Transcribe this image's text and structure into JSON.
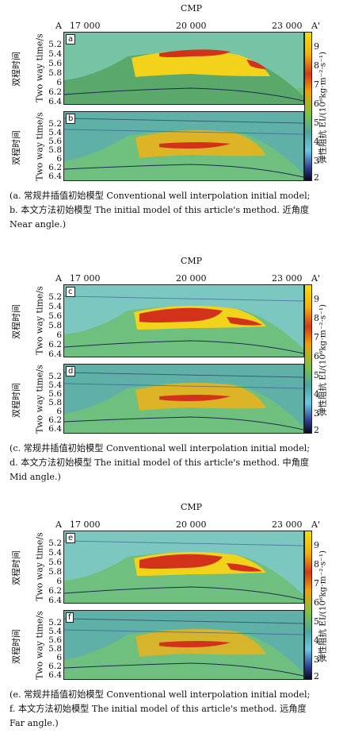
{
  "figure": {
    "groups": [
      {
        "cmp_label": "CMP",
        "a_label": "A",
        "a_prime_label": "A'",
        "x_ticks": [
          "17 000",
          "20 000",
          "23 000"
        ],
        "y_axis_cn": "双程时间",
        "y_axis_en": "Two way time/s",
        "y_ticks": [
          "5.2",
          "5.4",
          "5.6",
          "5.8",
          "6",
          "6.2",
          "6.4"
        ],
        "colorbar_label": "弹性阻抗 EI/(10⁶kg·m⁻²·s⁻¹)",
        "colorbar_ticks": [
          "9",
          "8",
          "7",
          "6",
          "5",
          "4",
          "3",
          "2"
        ],
        "panels": [
          {
            "label": "a"
          },
          {
            "label": "b"
          }
        ],
        "caption_lines": [
          "(a. 常规井插值初始模型 Conventional well interpolation initial model;",
          "b. 本文方法初始模型 The initial model of this article's method. 近角度",
          "Near angle.)"
        ]
      },
      {
        "cmp_label": "CMP",
        "a_label": "A",
        "a_prime_label": "A'",
        "x_ticks": [
          "17 000",
          "20 000",
          "23 000"
        ],
        "y_axis_cn": "双程时间",
        "y_axis_en": "Two way time/s",
        "y_ticks": [
          "5.2",
          "5.4",
          "5.6",
          "5.8",
          "6",
          "6.2",
          "6.4"
        ],
        "colorbar_label": "弹性阻抗 EI/(10⁶kg·m⁻²·s⁻¹)",
        "colorbar_ticks": [
          "9",
          "8",
          "7",
          "6",
          "5",
          "4",
          "3",
          "2"
        ],
        "panels": [
          {
            "label": "c"
          },
          {
            "label": "d"
          }
        ],
        "caption_lines": [
          "(c. 常规井插值初始模型 Conventional well interpolation initial model;",
          "d. 本文方法初始模型 The initial model of this article's method. 中角度",
          "Mid angle.)"
        ]
      },
      {
        "cmp_label": "CMP",
        "a_label": "A",
        "a_prime_label": "A'",
        "x_ticks": [
          "17 000",
          "20 000",
          "23 000"
        ],
        "y_axis_cn": "双程时间",
        "y_axis_en": "Two way time/s",
        "y_ticks": [
          "5.2",
          "5.4",
          "5.6",
          "5.8",
          "6",
          "6.2",
          "6.4"
        ],
        "colorbar_label": "弹性阻抗 EI/(10⁶kg·m⁻²·s⁻¹)",
        "colorbar_ticks": [
          "9",
          "8",
          "7",
          "6",
          "5",
          "4",
          "3",
          "2"
        ],
        "panels": [
          {
            "label": "e"
          },
          {
            "label": "f"
          }
        ],
        "caption_lines": [
          "(e. 常规井插值初始模型 Conventional well interpolation initial model;",
          "f. 本文方法初始模型 The initial model of this article's method. 远角度",
          "Far angle.)"
        ]
      }
    ],
    "colors": {
      "background_green": "#6fbf7e",
      "upper_cyan": "#7cc8c0",
      "yellow": "#f2d21a",
      "red": "#d2321a",
      "deep": "#1e2a55"
    }
  }
}
